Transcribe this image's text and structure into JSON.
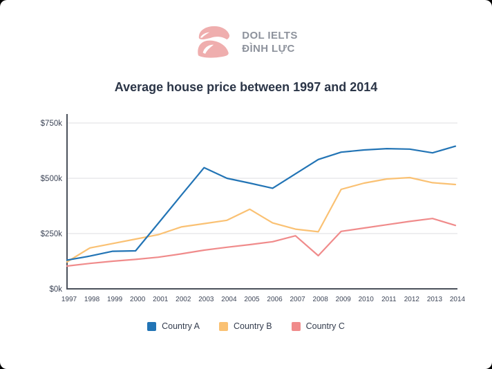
{
  "page": {
    "outer_background": "#000000",
    "card_background": "#ffffff"
  },
  "logo": {
    "brand_line1": "DOL IELTS",
    "brand_line2": "ĐÌNH LỰC",
    "mark_color": "#efaeae",
    "text_color": "#8d929c"
  },
  "title": "Average house price between 1997 and 2014",
  "chart_data": {
    "type": "line",
    "x": [
      "1997",
      "1998",
      "1999",
      "2000",
      "2001",
      "2002",
      "2003",
      "2004",
      "2005",
      "2006",
      "2007",
      "2008",
      "2009",
      "2010",
      "2011",
      "2012",
      "2013",
      "2014"
    ],
    "series": [
      {
        "name": "Country A",
        "color": "#2274b5",
        "values": [
          130,
          148,
          170,
          172,
          297,
          423,
          548,
          500,
          478,
          455,
          520,
          585,
          618,
          628,
          634,
          632,
          615,
          645
        ]
      },
      {
        "name": "Country B",
        "color": "#fac173",
        "values": [
          122,
          185,
          205,
          225,
          245,
          280,
          295,
          310,
          360,
          298,
          270,
          258,
          450,
          478,
          497,
          503,
          480,
          472
        ]
      },
      {
        "name": "Country C",
        "color": "#f08b8b",
        "values": [
          103,
          115,
          125,
          133,
          143,
          158,
          175,
          188,
          200,
          213,
          240,
          150,
          260,
          275,
          290,
          305,
          318,
          287
        ]
      }
    ],
    "unit": "USD thousands",
    "ylim": [
      0,
      780
    ],
    "yticks": [
      {
        "value": 0,
        "label": "$0k"
      },
      {
        "value": 250,
        "label": "$250k"
      },
      {
        "value": 500,
        "label": "$500k"
      },
      {
        "value": 750,
        "label": "$750k"
      }
    ],
    "grid": "horizontal",
    "legend_position": "bottom",
    "colors": {
      "axis": "#4a505a",
      "grid": "#e4e4e6",
      "tick_label": "#3d4557"
    }
  }
}
